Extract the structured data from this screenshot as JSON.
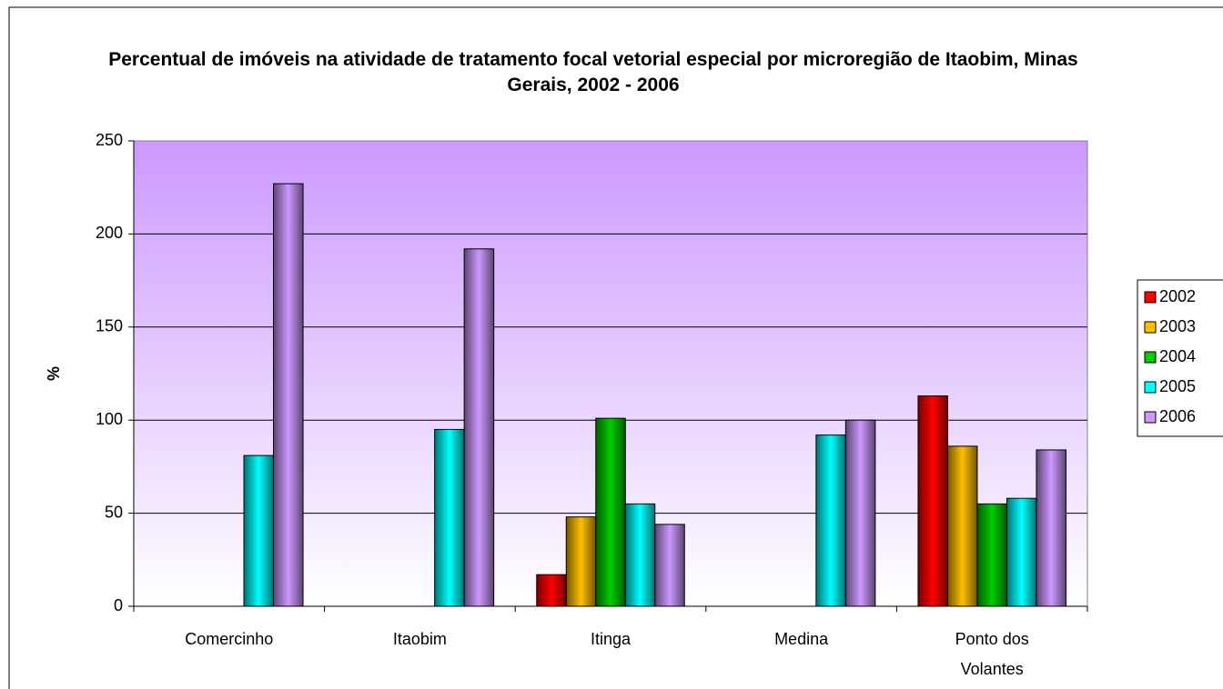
{
  "chart_data": {
    "type": "bar",
    "title": "Percentual de imóveis na atividade de tratamento focal vetorial especial por microregião de Itaobim, Minas Gerais, 2002 - 2006",
    "y_label": "%",
    "categories": [
      "Comercinho",
      "Itaobim",
      "Itinga",
      "Medina",
      "Ponto dos Volantes"
    ],
    "series": [
      {
        "name": "2002",
        "color": "#ff0000",
        "values": [
          null,
          null,
          17,
          null,
          113
        ]
      },
      {
        "name": "2003",
        "color": "#ffc000",
        "values": [
          null,
          null,
          48,
          null,
          86
        ]
      },
      {
        "name": "2004",
        "color": "#00cc00",
        "values": [
          null,
          null,
          101,
          null,
          55
        ]
      },
      {
        "name": "2005",
        "color": "#00ffff",
        "values": [
          81,
          95,
          55,
          92,
          58
        ]
      },
      {
        "name": "2006",
        "color": "#cc99ff",
        "values": [
          227,
          192,
          44,
          100,
          84
        ]
      }
    ],
    "ylim": [
      0,
      250
    ],
    "yticks": [
      0,
      50,
      100,
      150,
      200,
      250
    ],
    "grid": true,
    "legend": "right"
  }
}
